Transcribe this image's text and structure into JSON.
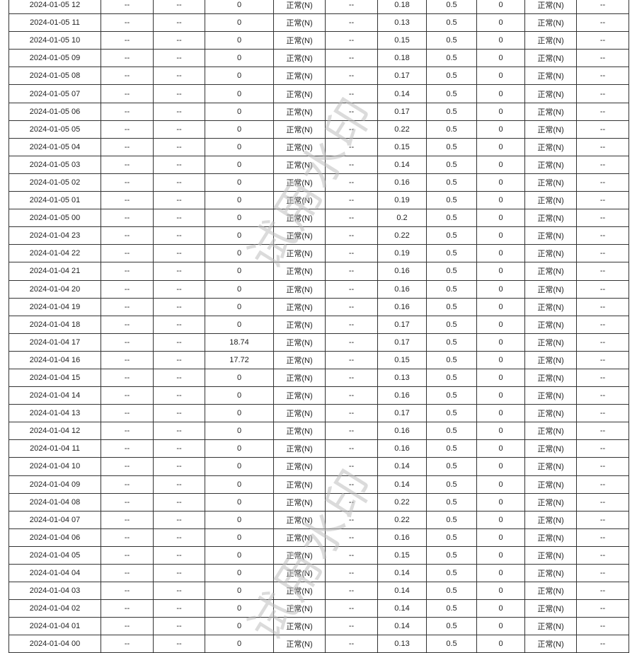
{
  "watermark": "试用水印",
  "status_normal": "正常(N)",
  "empty": "--",
  "rows": [
    [
      "2024-01-05 12",
      "0",
      "0.18"
    ],
    [
      "2024-01-05 11",
      "0",
      "0.13"
    ],
    [
      "2024-01-05 10",
      "0",
      "0.15"
    ],
    [
      "2024-01-05 09",
      "0",
      "0.18"
    ],
    [
      "2024-01-05 08",
      "0",
      "0.17"
    ],
    [
      "2024-01-05 07",
      "0",
      "0.14"
    ],
    [
      "2024-01-05 06",
      "0",
      "0.17"
    ],
    [
      "2024-01-05 05",
      "0",
      "0.22"
    ],
    [
      "2024-01-05 04",
      "0",
      "0.15"
    ],
    [
      "2024-01-05 03",
      "0",
      "0.14"
    ],
    [
      "2024-01-05 02",
      "0",
      "0.16"
    ],
    [
      "2024-01-05 01",
      "0",
      "0.19"
    ],
    [
      "2024-01-05 00",
      "0",
      "0.2"
    ],
    [
      "2024-01-04 23",
      "0",
      "0.22"
    ],
    [
      "2024-01-04 22",
      "0",
      "0.19"
    ],
    [
      "2024-01-04 21",
      "0",
      "0.16"
    ],
    [
      "2024-01-04 20",
      "0",
      "0.16"
    ],
    [
      "2024-01-04 19",
      "0",
      "0.16"
    ],
    [
      "2024-01-04 18",
      "0",
      "0.17"
    ],
    [
      "2024-01-04 17",
      "18.74",
      "0.17"
    ],
    [
      "2024-01-04 16",
      "17.72",
      "0.15"
    ],
    [
      "2024-01-04 15",
      "0",
      "0.13"
    ],
    [
      "2024-01-04 14",
      "0",
      "0.16"
    ],
    [
      "2024-01-04 13",
      "0",
      "0.17"
    ],
    [
      "2024-01-04 12",
      "0",
      "0.16"
    ],
    [
      "2024-01-04 11",
      "0",
      "0.16"
    ],
    [
      "2024-01-04 10",
      "0",
      "0.14"
    ],
    [
      "2024-01-04 09",
      "0",
      "0.14"
    ],
    [
      "2024-01-04 08",
      "0",
      "0.22"
    ],
    [
      "2024-01-04 07",
      "0",
      "0.22"
    ],
    [
      "2024-01-04 06",
      "0",
      "0.16"
    ],
    [
      "2024-01-04 05",
      "0",
      "0.15"
    ],
    [
      "2024-01-04 04",
      "0",
      "0.14"
    ],
    [
      "2024-01-04 03",
      "0",
      "0.14"
    ],
    [
      "2024-01-04 02",
      "0",
      "0.14"
    ],
    [
      "2024-01-04 01",
      "0",
      "0.14"
    ],
    [
      "2024-01-04 00",
      "0",
      "0.13"
    ]
  ],
  "fixed": {
    "col8": "0.5",
    "col9": "0"
  }
}
